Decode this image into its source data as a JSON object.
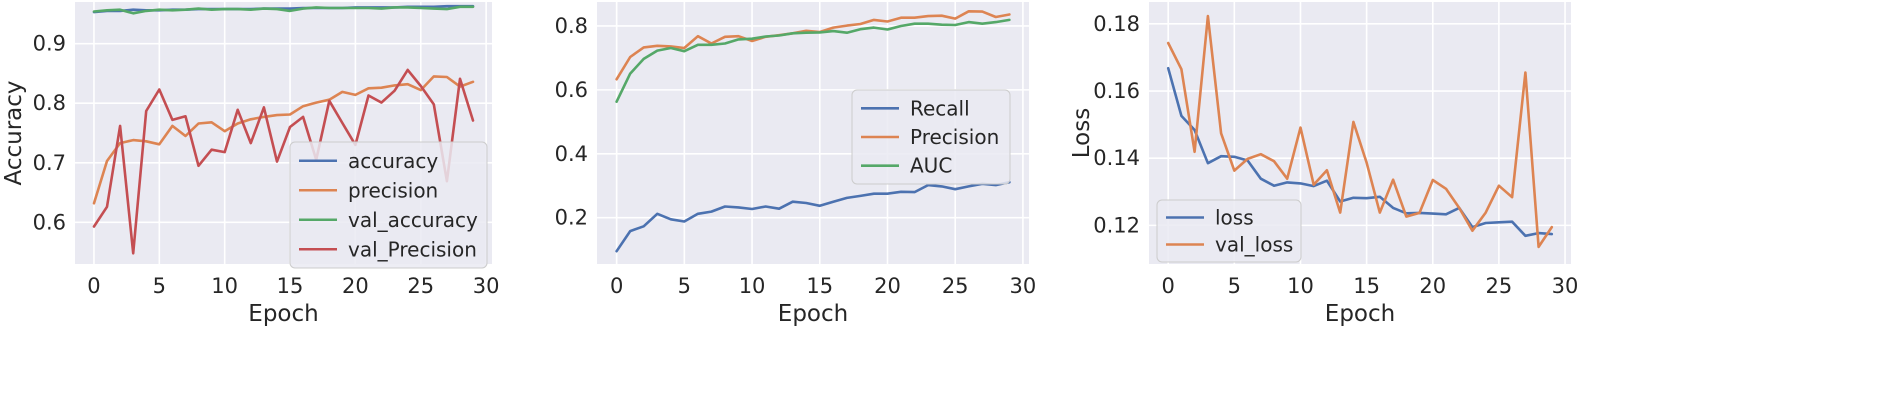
{
  "chart_data": [
    {
      "type": "line",
      "xlabel": "Epoch",
      "ylabel": "Accuracy",
      "xlim": [
        -1.45,
        30.45
      ],
      "ylim": [
        0.53,
        0.97
      ],
      "xticks": [
        0,
        5,
        10,
        15,
        20,
        25,
        30
      ],
      "yticks": [
        0.6,
        0.7,
        0.8,
        0.9
      ],
      "ytick_format": 1,
      "grid": true,
      "legend_position": "lower-right",
      "x": [
        0,
        1,
        2,
        3,
        4,
        5,
        6,
        7,
        8,
        9,
        10,
        11,
        12,
        13,
        14,
        15,
        16,
        17,
        18,
        19,
        20,
        21,
        22,
        23,
        24,
        25,
        26,
        27,
        28,
        29
      ],
      "series": [
        {
          "name": "accuracy",
          "color": "#4c72b0",
          "values": [
            0.953,
            0.955,
            0.955,
            0.957,
            0.956,
            0.956,
            0.957,
            0.957,
            0.958,
            0.958,
            0.958,
            0.958,
            0.958,
            0.959,
            0.959,
            0.959,
            0.96,
            0.96,
            0.96,
            0.96,
            0.961,
            0.961,
            0.961,
            0.961,
            0.962,
            0.962,
            0.962,
            0.963,
            0.963,
            0.963
          ]
        },
        {
          "name": "precision",
          "color": "#dd8452",
          "values": [
            0.632,
            0.703,
            0.733,
            0.738,
            0.736,
            0.731,
            0.762,
            0.745,
            0.766,
            0.768,
            0.753,
            0.766,
            0.773,
            0.777,
            0.78,
            0.781,
            0.795,
            0.801,
            0.806,
            0.819,
            0.814,
            0.825,
            0.826,
            0.83,
            0.832,
            0.822,
            0.845,
            0.844,
            0.828,
            0.836
          ]
        },
        {
          "name": "val_accuracy",
          "color": "#55a868",
          "values": [
            0.954,
            0.956,
            0.957,
            0.951,
            0.955,
            0.957,
            0.956,
            0.957,
            0.959,
            0.957,
            0.958,
            0.958,
            0.957,
            0.959,
            0.958,
            0.955,
            0.959,
            0.961,
            0.96,
            0.96,
            0.96,
            0.96,
            0.959,
            0.961,
            0.961,
            0.96,
            0.959,
            0.958,
            0.962,
            0.962
          ]
        },
        {
          "name": "val_Precision",
          "color": "#c44e52",
          "values": [
            0.593,
            0.626,
            0.762,
            0.548,
            0.787,
            0.823,
            0.772,
            0.778,
            0.695,
            0.722,
            0.718,
            0.789,
            0.733,
            0.793,
            0.702,
            0.76,
            0.777,
            0.705,
            0.804,
            0.767,
            0.73,
            0.813,
            0.801,
            0.821,
            0.856,
            0.829,
            0.798,
            0.669,
            0.841,
            0.771
          ]
        }
      ]
    },
    {
      "type": "line",
      "xlabel": "Epoch",
      "ylabel": "",
      "xlim": [
        -1.45,
        30.45
      ],
      "ylim": [
        0.055,
        0.875
      ],
      "xticks": [
        0,
        5,
        10,
        15,
        20,
        25,
        30
      ],
      "yticks": [
        0.2,
        0.4,
        0.6,
        0.8
      ],
      "ytick_format": 1,
      "grid": true,
      "legend_position": "center-right",
      "x": [
        0,
        1,
        2,
        3,
        4,
        5,
        6,
        7,
        8,
        9,
        10,
        11,
        12,
        13,
        14,
        15,
        16,
        17,
        18,
        19,
        20,
        21,
        22,
        23,
        24,
        25,
        26,
        27,
        28,
        29
      ],
      "series": [
        {
          "name": "Recall",
          "color": "#4c72b0",
          "values": [
            0.095,
            0.158,
            0.173,
            0.212,
            0.195,
            0.188,
            0.212,
            0.219,
            0.235,
            0.232,
            0.227,
            0.235,
            0.228,
            0.25,
            0.246,
            0.237,
            0.25,
            0.262,
            0.268,
            0.275,
            0.275,
            0.281,
            0.28,
            0.302,
            0.298,
            0.289,
            0.298,
            0.306,
            0.302,
            0.311
          ]
        },
        {
          "name": "Precision",
          "color": "#dd8452",
          "values": [
            0.633,
            0.703,
            0.733,
            0.738,
            0.736,
            0.731,
            0.768,
            0.745,
            0.766,
            0.768,
            0.753,
            0.766,
            0.771,
            0.777,
            0.785,
            0.781,
            0.795,
            0.801,
            0.806,
            0.819,
            0.814,
            0.826,
            0.826,
            0.831,
            0.832,
            0.823,
            0.846,
            0.845,
            0.828,
            0.836
          ]
        },
        {
          "name": "AUC",
          "color": "#55a868",
          "values": [
            0.563,
            0.651,
            0.697,
            0.723,
            0.731,
            0.721,
            0.741,
            0.741,
            0.745,
            0.758,
            0.76,
            0.767,
            0.77,
            0.777,
            0.779,
            0.78,
            0.784,
            0.779,
            0.79,
            0.795,
            0.789,
            0.8,
            0.807,
            0.807,
            0.804,
            0.803,
            0.812,
            0.807,
            0.812,
            0.819
          ]
        }
      ]
    },
    {
      "type": "line",
      "xlabel": "Epoch",
      "ylabel": "Loss",
      "xlim": [
        -1.45,
        30.45
      ],
      "ylim": [
        0.1085,
        0.1865
      ],
      "xticks": [
        0,
        5,
        10,
        15,
        20,
        25,
        30
      ],
      "yticks": [
        0.12,
        0.14,
        0.16,
        0.18
      ],
      "ytick_format": 2,
      "grid": true,
      "legend_position": "lower-left",
      "x": [
        0,
        1,
        2,
        3,
        4,
        5,
        6,
        7,
        8,
        9,
        10,
        11,
        12,
        13,
        14,
        15,
        16,
        17,
        18,
        19,
        20,
        21,
        22,
        23,
        24,
        25,
        26,
        27,
        28,
        29
      ],
      "series": [
        {
          "name": "loss",
          "color": "#4c72b0",
          "values": [
            0.1668,
            0.1526,
            0.1484,
            0.1385,
            0.1406,
            0.1404,
            0.1393,
            0.1339,
            0.1318,
            0.1328,
            0.1325,
            0.1317,
            0.1333,
            0.1271,
            0.1282,
            0.1281,
            0.1285,
            0.1252,
            0.1236,
            0.1237,
            0.1235,
            0.1233,
            0.1252,
            0.1195,
            0.1207,
            0.1209,
            0.1211,
            0.1169,
            0.1177,
            0.1174
          ]
        },
        {
          "name": "val_loss",
          "color": "#dd8452",
          "values": [
            0.1743,
            0.1665,
            0.1419,
            0.1823,
            0.1474,
            0.1363,
            0.1398,
            0.1412,
            0.1391,
            0.1339,
            0.1491,
            0.1321,
            0.1364,
            0.1238,
            0.1508,
            0.1387,
            0.1238,
            0.1336,
            0.1226,
            0.1237,
            0.1335,
            0.1309,
            0.1252,
            0.1184,
            0.1238,
            0.1318,
            0.1284,
            0.1655,
            0.1136,
            0.1195
          ]
        }
      ]
    }
  ]
}
